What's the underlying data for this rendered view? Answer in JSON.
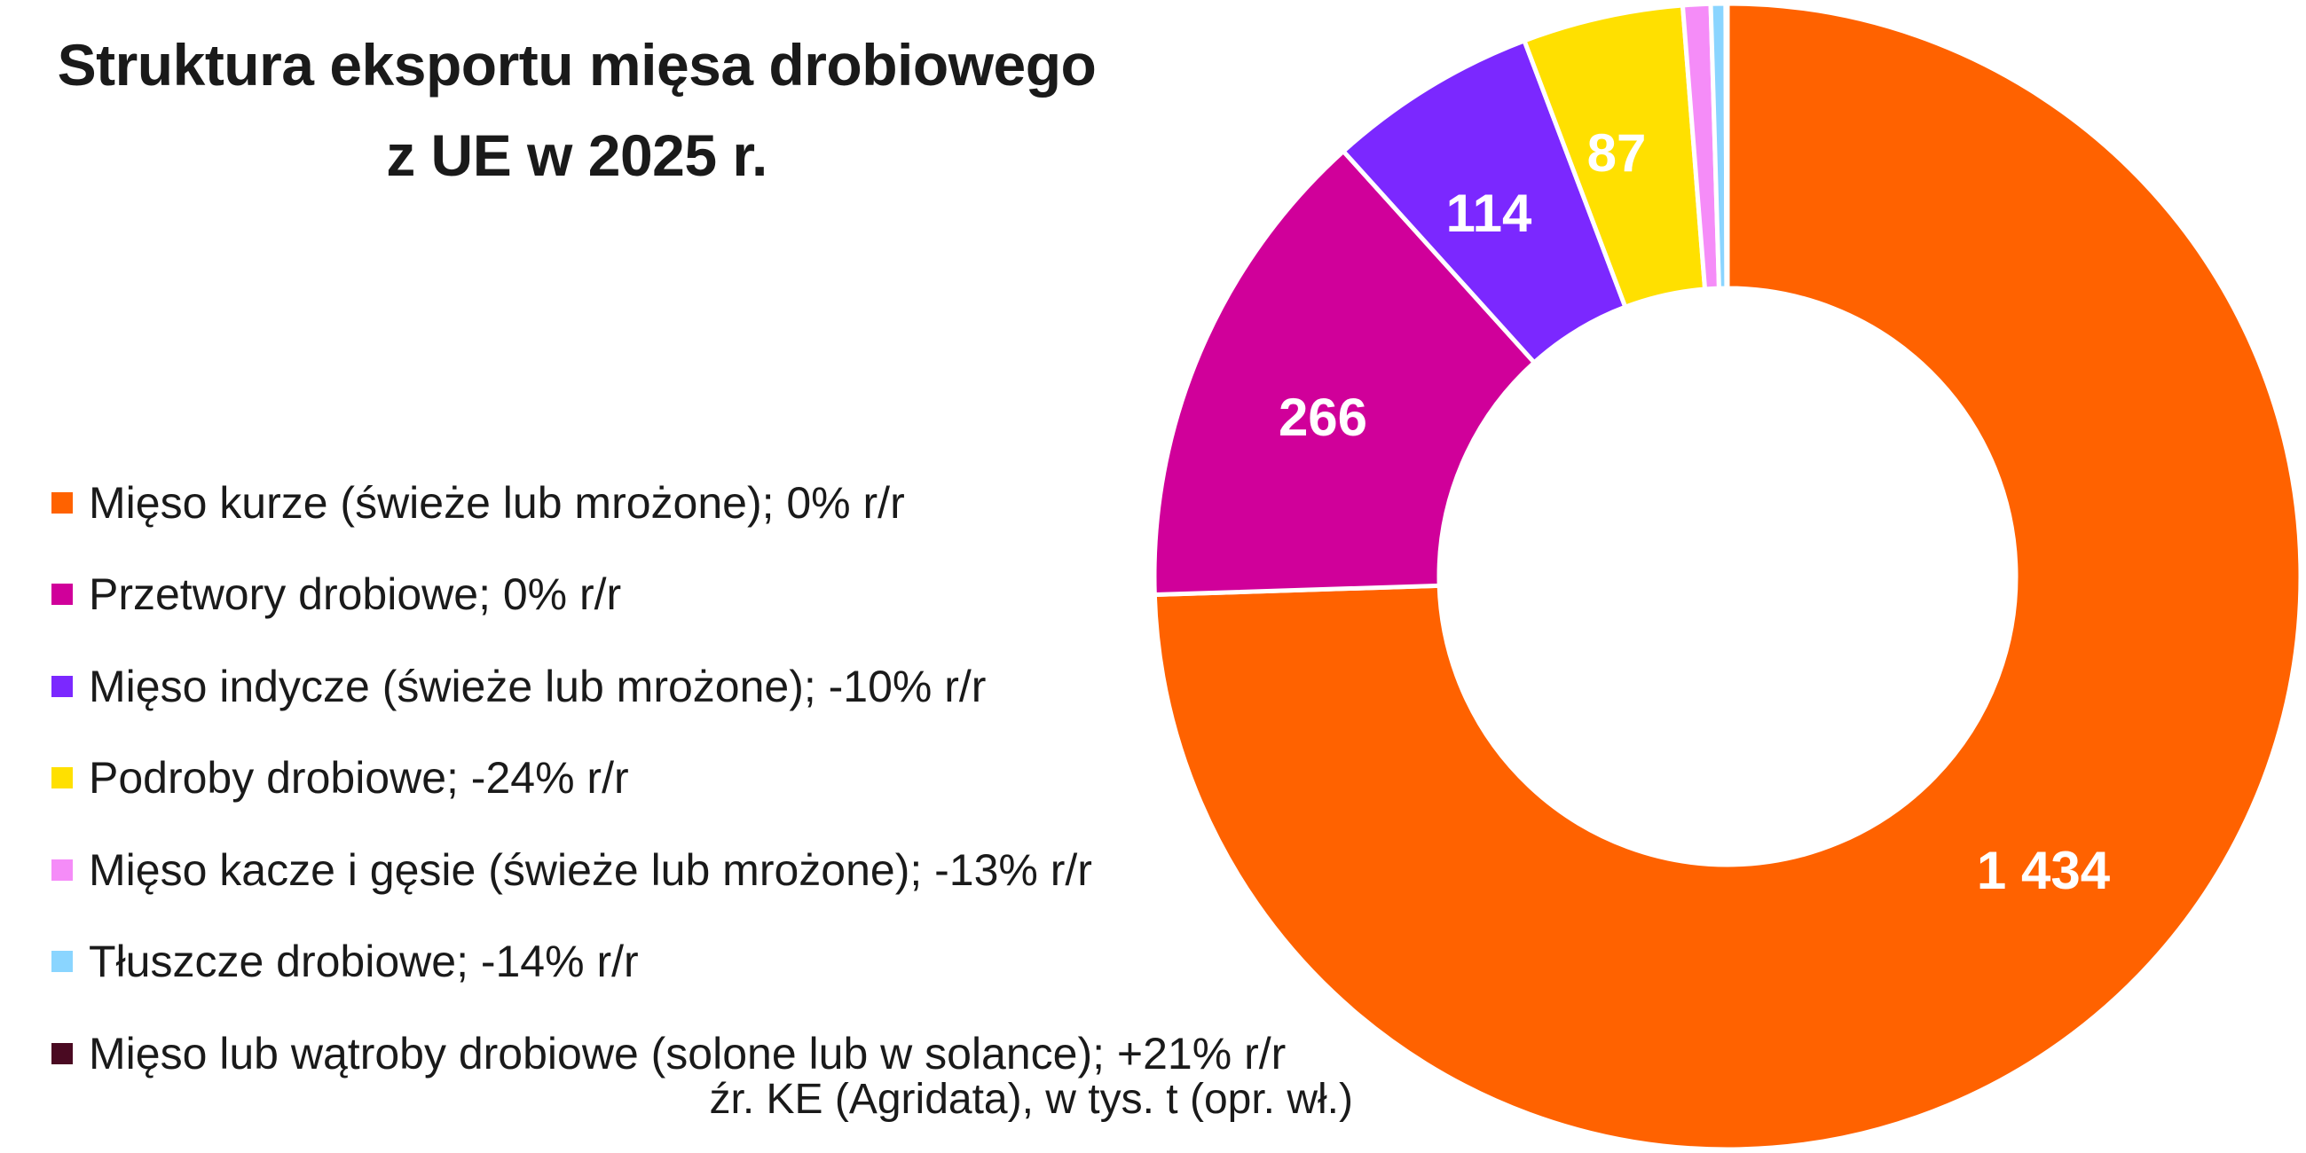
{
  "chart_data": {
    "type": "pie",
    "variant": "donut",
    "title_lines": [
      "Struktura eksportu mięsa drobiowego",
      "z UE w 2025 r."
    ],
    "source": "źr. KE (Agridata), w tys. t (opr. wł.)",
    "legend_position": "left",
    "slices": [
      {
        "label": "Mięso kurze (świeże lub mrożone); 0% r/r",
        "value": 1434,
        "data_label": "1 434",
        "color": "#FF6200"
      },
      {
        "label": "Przetwory drobiowe; 0% r/r",
        "value": 266,
        "data_label": "266",
        "color": "#D0009A"
      },
      {
        "label": "Mięso indycze (świeże lub mrożone); -10% r/r",
        "value": 114,
        "data_label": "114",
        "color": "#7B28FF"
      },
      {
        "label": "Podroby drobiowe; -24% r/r",
        "value": 87,
        "data_label": "87",
        "color": "#FFE000"
      },
      {
        "label": "Mięso kacze i gęsie (świeże lub mrożone); -13% r/r",
        "value": 15,
        "data_label": "",
        "color": "#F58CF8"
      },
      {
        "label": "Tłuszcze drobiowe; -14% r/r",
        "value": 8,
        "data_label": "",
        "color": "#8AD5FF"
      },
      {
        "label": "Mięso lub wątroby drobiowe (solone lub w solance); +21% r/r",
        "value": 1,
        "data_label": "",
        "color": "#4A0A22"
      }
    ]
  }
}
